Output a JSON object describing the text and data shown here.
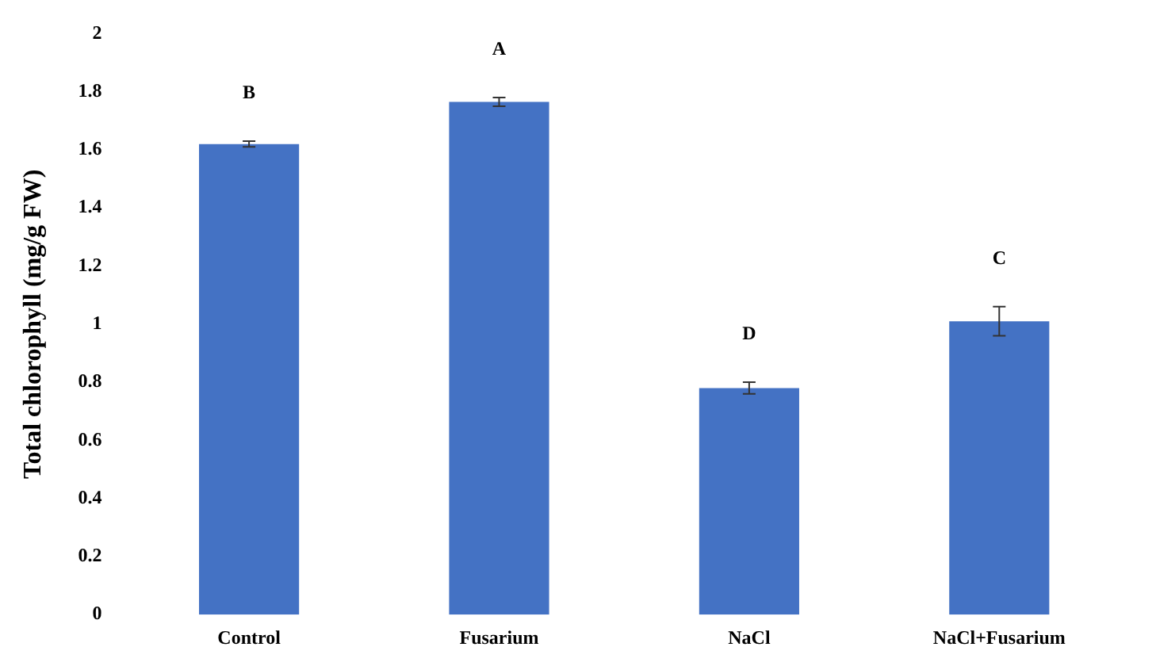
{
  "chart_data": {
    "type": "bar",
    "ylabel": "Total chlorophyll (mg/g FW)",
    "categories": [
      "Control",
      "Fusarium",
      "NaCl",
      "NaCl+Fusarium"
    ],
    "values": [
      1.62,
      1.765,
      0.78,
      1.01
    ],
    "errors": [
      0.01,
      0.015,
      0.02,
      0.05
    ],
    "color": "#4472c4",
    "ylim": [
      0,
      2
    ],
    "yticks": [
      0,
      0.2,
      0.4,
      0.6,
      0.8,
      1,
      1.2,
      1.4,
      1.6,
      1.8,
      2
    ],
    "grid": false,
    "legend": false,
    "annotations": [
      "B",
      "A",
      "D",
      "C"
    ]
  }
}
